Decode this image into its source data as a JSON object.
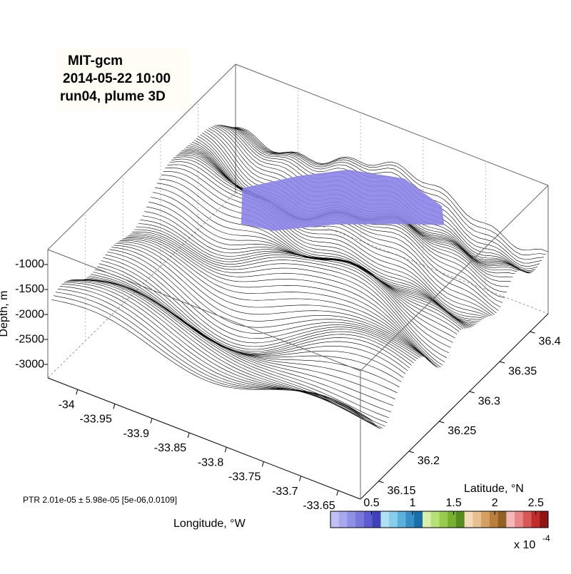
{
  "chart_data": {
    "type": "surface3d",
    "title": [
      "MIT-gcm",
      "2014-05-22 10:00",
      "run04, plume 3D"
    ],
    "xlabel": "Longitude, °W",
    "ylabel": "Latitude, °N",
    "zlabel": "Depth, m",
    "xlim": [
      -34.04,
      -33.62
    ],
    "xticks": [
      -34,
      -33.95,
      -33.9,
      -33.85,
      -33.8,
      -33.75,
      -33.7,
      -33.65
    ],
    "ylim": [
      36.12,
      36.43
    ],
    "yticks": [
      36.15,
      36.2,
      36.25,
      36.3,
      36.35,
      36.4
    ],
    "zlim": [
      -3270,
      -700
    ],
    "zticks": [
      -1000,
      -1500,
      -2000,
      -2500,
      -3000
    ],
    "annotation": "PTR 2.01e-05 ± 5.98e-05 [5e-06,0.0109]",
    "colorbar": {
      "clim": [
        0,
        2.65
      ],
      "ticks": [
        0.5,
        1,
        1.5,
        2,
        2.5
      ],
      "scale": "x 10",
      "exponent": "-4",
      "colors": [
        "#c0c0f4",
        "#a8a8ee",
        "#9090e6",
        "#7878dc",
        "#5c5cd0",
        "#4040b8",
        "#b0e0f4",
        "#88ccec",
        "#5cb0dc",
        "#3890c8",
        "#1c6ea8",
        "#d8f0a8",
        "#b8e078",
        "#98cc50",
        "#78b030",
        "#588c20",
        "#f4dcb8",
        "#e8c090",
        "#d4a064",
        "#b8803c",
        "#906024",
        "#f4b8b8",
        "#e88888",
        "#d85858",
        "#c02c2c",
        "#901414"
      ]
    },
    "plume_color": "#8c84e8",
    "terrain_color": "#000000"
  }
}
